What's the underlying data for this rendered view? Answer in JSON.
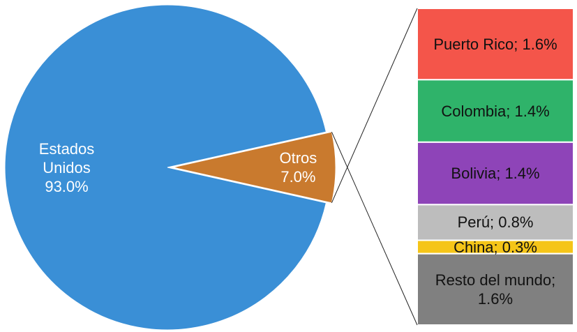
{
  "chart_data": [
    {
      "type": "pie",
      "categories": [
        "Estados Unidos",
        "Otros"
      ],
      "values": [
        93.0,
        7.0
      ],
      "value_labels": [
        "93.0%",
        "7.0%"
      ],
      "colors": [
        "#3a8fd6",
        "#c97a2e"
      ]
    },
    {
      "type": "stacked-bar",
      "values": [
        1.6,
        1.4,
        1.4,
        0.8,
        0.3,
        1.6
      ],
      "value_labels": [
        "Puerto Rico; 1.6%",
        "Colombia; 1.4%",
        "Bolivia; 1.4%",
        "Perú; 0.8%",
        "China; 0.3%",
        "Resto del mundo; 1.6%"
      ],
      "colors": [
        "#f4554a",
        "#2fb36a",
        "#8e44b8",
        "#bdbdbd",
        "#f5c518",
        "#808080"
      ]
    }
  ]
}
